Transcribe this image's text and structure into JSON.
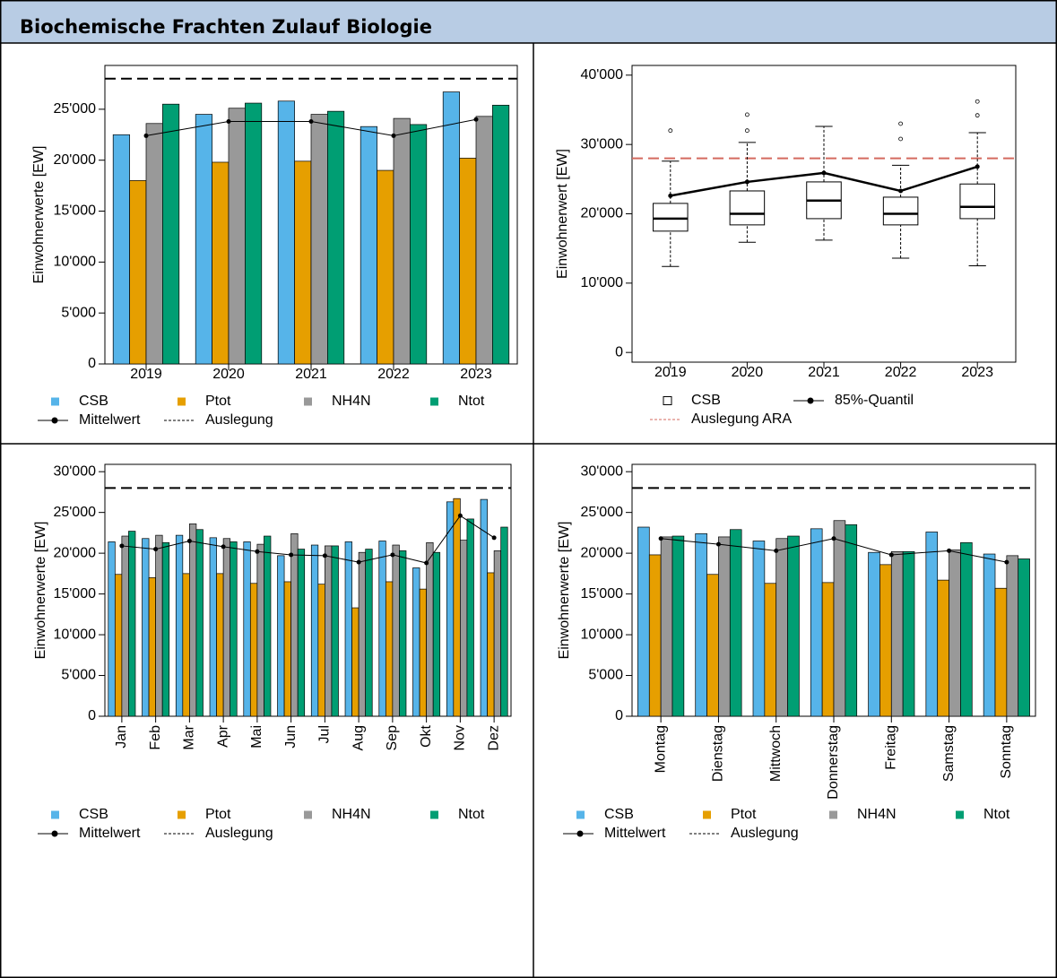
{
  "header": {
    "title": "Biochemische Frachten Zulauf Biologie"
  },
  "chart_data": [
    {
      "type": "bar",
      "ylabel": "Einwohnerwerte [EW]",
      "categories": [
        "2019",
        "2020",
        "2021",
        "2022",
        "2023"
      ],
      "ylim": [
        0,
        29300
      ],
      "yticks": [
        0,
        {
          "value": 5000,
          "label": "5'000"
        },
        {
          "value": 10000,
          "label": "10'000"
        },
        {
          "value": 15000,
          "label": "15'000"
        },
        {
          "value": 20000,
          "label": "20'000"
        },
        {
          "value": 25000,
          "label": "25'000"
        }
      ],
      "series": [
        {
          "name": "CSB",
          "color": "#56b4e9",
          "values": [
            22500,
            24500,
            25800,
            23300,
            26700
          ]
        },
        {
          "name": "Ptot",
          "color": "#e69f00",
          "values": [
            18000,
            19800,
            19900,
            19000,
            20200
          ]
        },
        {
          "name": "NH4N",
          "color": "#999999",
          "values": [
            23600,
            25100,
            24500,
            24100,
            24300
          ]
        },
        {
          "name": "Ntot",
          "color": "#009e73",
          "values": [
            25500,
            25600,
            24800,
            23500,
            25400
          ]
        },
        {
          "name": "Mittelwert",
          "type": "line",
          "color": "#000000",
          "values": [
            22400,
            23800,
            23800,
            22400,
            24000
          ]
        }
      ],
      "reference_lines": [
        {
          "name": "Auslegung",
          "value": 28000,
          "color": "#000000"
        }
      ]
    },
    {
      "type": "box",
      "ylabel": "Einwohnerwert [EW]",
      "categories": [
        "2019",
        "2020",
        "2021",
        "2022",
        "2023"
      ],
      "ylim": [
        -1400,
        41400
      ],
      "yticks": [
        0,
        {
          "value": 10000,
          "label": "10'000"
        },
        {
          "value": 20000,
          "label": "20'000"
        },
        {
          "value": 30000,
          "label": "30'000"
        },
        {
          "value": 40000,
          "label": "40'000"
        }
      ],
      "series": [
        {
          "name": "CSB",
          "type": "box",
          "color": "#ffffff",
          "whisker_low": [
            12400,
            15900,
            16200,
            13600,
            12500
          ],
          "q1": [
            17500,
            18400,
            19300,
            18400,
            19300
          ],
          "median": [
            19300,
            20000,
            21900,
            20000,
            21000
          ],
          "q3": [
            21500,
            23300,
            24600,
            22400,
            24300
          ],
          "whisker_high": [
            27600,
            30300,
            32600,
            27000,
            31700
          ],
          "outliers": [
            [
              32000
            ],
            [
              32000,
              34300
            ],
            [],
            [
              30800,
              33000
            ],
            [
              34200,
              36200
            ]
          ]
        },
        {
          "name": "85%-Quantil",
          "type": "line",
          "color": "#000000",
          "values": [
            22600,
            24600,
            25900,
            23300,
            26800
          ]
        }
      ],
      "reference_lines": [
        {
          "name": "Auslegung ARA",
          "value": 28000,
          "color": "#d46a5f"
        }
      ]
    },
    {
      "type": "bar",
      "ylabel": "Einwohnerwerte [EW]",
      "categories": [
        "Jan",
        "Feb",
        "Mar",
        "Apr",
        "Mai",
        "Jun",
        "Jul",
        "Aug",
        "Sep",
        "Okt",
        "Nov",
        "Dez"
      ],
      "ylim": [
        0,
        30900
      ],
      "yticks": [
        0,
        {
          "value": 5000,
          "label": "5'000"
        },
        {
          "value": 10000,
          "label": "10'000"
        },
        {
          "value": 15000,
          "label": "15'000"
        },
        {
          "value": 20000,
          "label": "20'000"
        },
        {
          "value": 25000,
          "label": "25'000"
        },
        {
          "value": 30000,
          "label": "30'000"
        }
      ],
      "series": [
        {
          "name": "CSB",
          "color": "#56b4e9",
          "values": [
            21400,
            21800,
            22200,
            21900,
            21400,
            19700,
            21000,
            21400,
            21500,
            18200,
            26300,
            26600
          ]
        },
        {
          "name": "Ptot",
          "color": "#e69f00",
          "values": [
            17400,
            17000,
            17500,
            17500,
            16300,
            16500,
            16200,
            13300,
            16500,
            15600,
            26700,
            17600
          ]
        },
        {
          "name": "NH4N",
          "color": "#999999",
          "values": [
            22100,
            22200,
            23600,
            21800,
            21100,
            22400,
            20900,
            20100,
            21000,
            21300,
            21600,
            20300
          ]
        },
        {
          "name": "Ntot",
          "color": "#009e73",
          "values": [
            22700,
            21300,
            22900,
            21400,
            22100,
            20500,
            20900,
            20500,
            20300,
            20100,
            24200,
            23200
          ]
        },
        {
          "name": "Mittelwert",
          "type": "line",
          "color": "#000000",
          "values": [
            20900,
            20500,
            21500,
            20800,
            20200,
            19800,
            19700,
            18900,
            19800,
            18800,
            24600,
            21900
          ]
        }
      ],
      "reference_lines": [
        {
          "name": "Auslegung",
          "value": 28000,
          "color": "#000000"
        }
      ]
    },
    {
      "type": "bar",
      "ylabel": "Einwohnerwerte [EW]",
      "categories": [
        "Montag",
        "Dienstag",
        "Mittwoch",
        "Donnerstag",
        "Freitag",
        "Samstag",
        "Sonntag"
      ],
      "ylim": [
        0,
        30900
      ],
      "yticks": [
        0,
        {
          "value": 5000,
          "label": "5'000"
        },
        {
          "value": 10000,
          "label": "10'000"
        },
        {
          "value": 15000,
          "label": "15'000"
        },
        {
          "value": 20000,
          "label": "20'000"
        },
        {
          "value": 25000,
          "label": "25'000"
        },
        {
          "value": 30000,
          "label": "30'000"
        }
      ],
      "series": [
        {
          "name": "CSB",
          "color": "#56b4e9",
          "values": [
            23200,
            22400,
            21500,
            23000,
            20100,
            22600,
            19900
          ]
        },
        {
          "name": "Ptot",
          "color": "#e69f00",
          "values": [
            19800,
            17400,
            16300,
            16400,
            18600,
            16700,
            15700
          ]
        },
        {
          "name": "NH4N",
          "color": "#999999",
          "values": [
            22000,
            22000,
            21800,
            24000,
            20200,
            20400,
            19700
          ]
        },
        {
          "name": "Ntot",
          "color": "#009e73",
          "values": [
            22100,
            22900,
            22100,
            23500,
            20200,
            21300,
            19300
          ]
        },
        {
          "name": "Mittelwert",
          "type": "line",
          "color": "#000000",
          "values": [
            21800,
            21100,
            20300,
            21800,
            19800,
            20300,
            18900
          ]
        }
      ],
      "reference_lines": [
        {
          "name": "Auslegung",
          "value": 28000,
          "color": "#000000"
        }
      ]
    }
  ]
}
